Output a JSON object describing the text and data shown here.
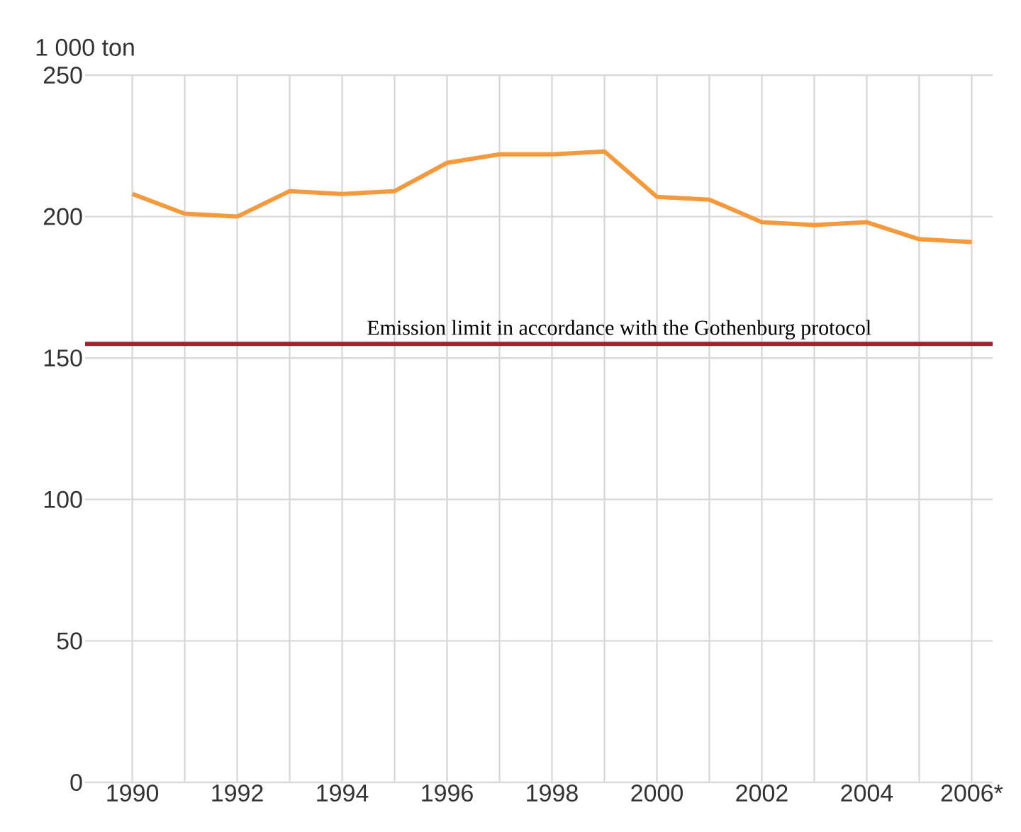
{
  "chart_data": {
    "type": "line",
    "ylabel": "1 000 ton",
    "categories": [
      "1990",
      null,
      "1992",
      null,
      "1994",
      null,
      "1996",
      null,
      "1998",
      null,
      "2000",
      null,
      "2002",
      null,
      "2004",
      null,
      "2006*"
    ],
    "series": [
      {
        "color": "#f59a3c",
        "values": [
          208,
          201,
          200,
          209,
          208,
          209,
          219,
          222,
          222,
          223,
          207,
          206,
          198,
          197,
          198,
          192,
          191
        ]
      }
    ],
    "ylim": [
      0,
      250
    ],
    "yticks": [
      0,
      50,
      100,
      150,
      200,
      250
    ],
    "grid": true,
    "ref_lines": [
      {
        "axis": "y",
        "value": 155,
        "label": "Emission limit in accordance with the Gothenburg protocol",
        "color": "#a3202c"
      }
    ]
  }
}
